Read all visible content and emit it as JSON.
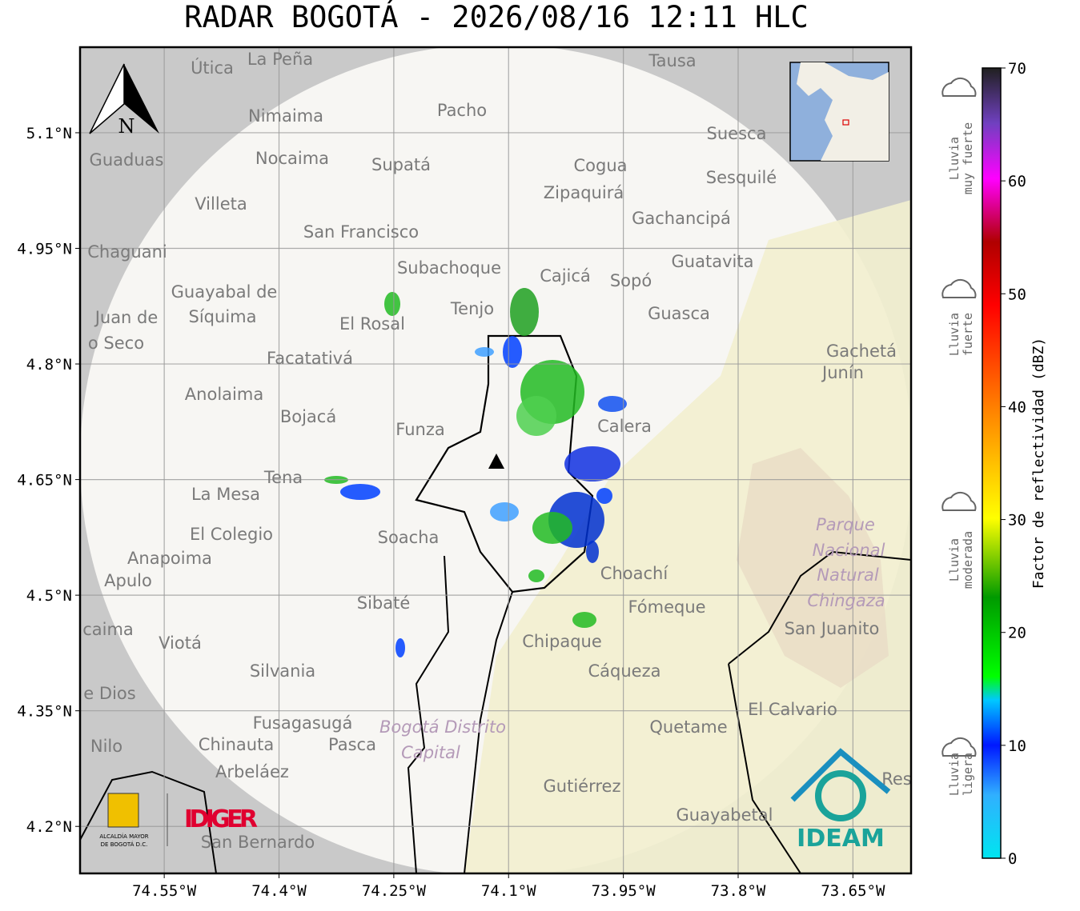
{
  "title": "RADAR BOGOTÁ - 2026/08/16 12:11 HLC",
  "map": {
    "xlim": [
      -74.66,
      -73.574
    ],
    "ylim": [
      4.139,
      5.211
    ],
    "xticks": [
      {
        "value": -74.55,
        "label": "74.55°W"
      },
      {
        "value": -74.4,
        "label": "74.4°W"
      },
      {
        "value": -74.25,
        "label": "74.25°W"
      },
      {
        "value": -74.1,
        "label": "74.1°W"
      },
      {
        "value": -73.95,
        "label": "73.95°W"
      },
      {
        "value": -73.8,
        "label": "73.8°W"
      },
      {
        "value": -73.65,
        "label": "73.65°W"
      }
    ],
    "yticks": [
      {
        "value": 5.1,
        "label": "5.1°N"
      },
      {
        "value": 4.95,
        "label": "4.95°N"
      },
      {
        "value": 4.8,
        "label": "4.8°N"
      },
      {
        "value": 4.65,
        "label": "4.65°N"
      },
      {
        "value": 4.5,
        "label": "4.5°N"
      },
      {
        "value": 4.35,
        "label": "4.35°N"
      },
      {
        "value": 4.2,
        "label": "4.2°N"
      }
    ],
    "grid": true,
    "north_label": "N",
    "places": [
      "La Peña",
      "Útica",
      "Tausa",
      "Pacho",
      "Nimaima",
      "Suesca",
      "Guaduas",
      "Nocaima",
      "Supatá",
      "Cogua",
      "Sesquilé",
      "Zipaquirá",
      "Villeta",
      "Gachancipá",
      "San Francisco",
      "Chaguani",
      "Guatavita",
      "Subachoque",
      "Cajicá",
      "Sopó",
      "Guayabal de",
      "Síquima",
      "Juan de",
      "Tenjo",
      "Guasca",
      "El Rosal",
      "o Seco",
      "Facatativá",
      "Gachetá",
      "Junín",
      "Anolaima",
      "Bojacá",
      "Calera",
      "Funza",
      "Tena",
      "La Mesa",
      "El Colegio",
      "Soacha",
      "Anapoima",
      "Choachí",
      "Apulo",
      "Sibaté",
      "Fómeque",
      "San Juanito",
      "caima",
      "Chipaque",
      "Viotá",
      "Silvania",
      "Cáqueza",
      "e Dios",
      "El Calvario",
      "Fusagasugá",
      "Quetame",
      "Nilo",
      "Chinauta",
      "Pasca",
      "Arbeláez",
      "Gutiérrez",
      "Res",
      "Guayabetal",
      "San Bernardo"
    ],
    "protected_places": [
      "Parque",
      "Nacional",
      "Natural",
      "Chingaza",
      "Bogotá Distrito",
      "Capital"
    ],
    "logos": {
      "alcaldia": "ALCALDÍA MAYOR",
      "alcaldia2": "DE BOGOTÁ D.C.",
      "idiger": "IDIGER",
      "ideam": "IDEAM"
    }
  },
  "colorbar": {
    "label": "Factor de reflectividad (dBZ)",
    "lim": [
      0,
      70
    ],
    "ticks": [
      0,
      10,
      20,
      30,
      40,
      50,
      60,
      70
    ]
  },
  "rain_levels": [
    [
      "Lluvia",
      "muy fuerte"
    ],
    [
      "Lluvia",
      "fuerte"
    ],
    [
      "Lluvia",
      "moderada"
    ],
    [
      "Lluvia",
      "ligera"
    ]
  ]
}
